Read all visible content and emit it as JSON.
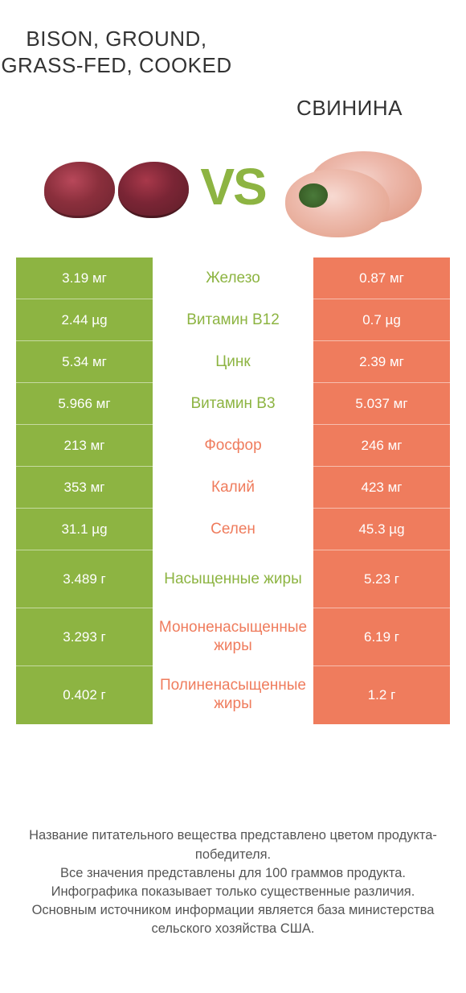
{
  "colors": {
    "green": "#8db442",
    "orange": "#ef7c5d",
    "text": "#333333",
    "footer_text": "#555555",
    "white": "#ffffff"
  },
  "left": {
    "title": "BISON,\nGROUND,\nGRASS-FED,\nCOOKED",
    "color": "#8db442"
  },
  "right": {
    "title": "СВИНИНА",
    "color": "#ef7c5d"
  },
  "vs_label": "VS",
  "rows": [
    {
      "a": "3.19 мг",
      "label": "Железо",
      "b": "0.87 мг",
      "winner": "a",
      "tall": false
    },
    {
      "a": "2.44 µg",
      "label": "Витамин B12",
      "b": "0.7 µg",
      "winner": "a",
      "tall": false
    },
    {
      "a": "5.34 мг",
      "label": "Цинк",
      "b": "2.39 мг",
      "winner": "a",
      "tall": false
    },
    {
      "a": "5.966 мг",
      "label": "Витамин B3",
      "b": "5.037 мг",
      "winner": "a",
      "tall": false
    },
    {
      "a": "213 мг",
      "label": "Фосфор",
      "b": "246 мг",
      "winner": "b",
      "tall": false
    },
    {
      "a": "353 мг",
      "label": "Калий",
      "b": "423 мг",
      "winner": "b",
      "tall": false
    },
    {
      "a": "31.1 µg",
      "label": "Селен",
      "b": "45.3 µg",
      "winner": "b",
      "tall": false
    },
    {
      "a": "3.489 г",
      "label": "Насыщенные жиры",
      "b": "5.23 г",
      "winner": "a",
      "tall": true
    },
    {
      "a": "3.293 г",
      "label": "Мононенасыщенные жиры",
      "b": "6.19 г",
      "winner": "b",
      "tall": true
    },
    {
      "a": "0.402 г",
      "label": "Полиненасыщенные жиры",
      "b": "1.2 г",
      "winner": "b",
      "tall": true
    }
  ],
  "footer": [
    "Название питательного вещества представлено цветом продукта-победителя.",
    "Все значения представлены для 100 граммов продукта.",
    "Инфографика показывает только существенные различия.",
    "Основным источником информации является база министерства сельского хозяйства США."
  ]
}
